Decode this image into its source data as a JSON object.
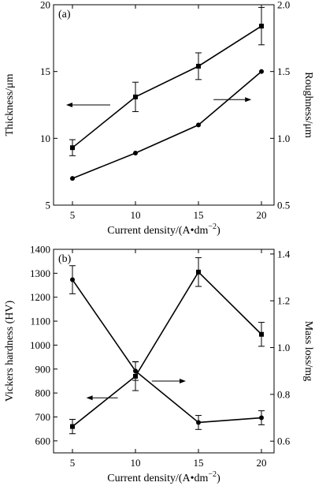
{
  "chart_data": [
    {
      "type": "line",
      "panel_label": "(a)",
      "xlabel": "Current density/(A•dm",
      "xlabel_sup": "−2",
      "xlabel_end": ")",
      "x": [
        5,
        10,
        15,
        20
      ],
      "x_ticks": [
        "5",
        "10",
        "15",
        "20"
      ],
      "xlim": [
        3.5,
        21
      ],
      "ylabel": "Thickness/μm",
      "ylim": [
        5,
        20
      ],
      "y_ticks": [
        "5",
        "10",
        "15",
        "20"
      ],
      "y_tick_values": [
        5,
        10,
        15,
        20
      ],
      "y2label": "Roughness/μm",
      "y2lim": [
        0.5,
        2.0
      ],
      "y2_ticks": [
        "0.5",
        "1.0",
        "1.5",
        "2.0"
      ],
      "y2_tick_values": [
        0.5,
        1.0,
        1.5,
        2.0
      ],
      "series": [
        {
          "axis": "left",
          "marker": "square",
          "values": [
            9.3,
            13.1,
            15.4,
            18.4
          ],
          "err": [
            0.6,
            1.1,
            1.0,
            1.4
          ]
        },
        {
          "axis": "right",
          "marker": "circle",
          "values": [
            0.7,
            0.89,
            1.1,
            1.5
          ],
          "err": [
            0,
            0,
            0,
            0
          ]
        }
      ],
      "arrows": [
        {
          "direction": "left",
          "at_x": 8.0,
          "at_y": 12.5,
          "length": 3.5
        },
        {
          "direction": "right",
          "at_x": 16.2,
          "at_y": 12.9,
          "length": 3.0
        }
      ]
    },
    {
      "type": "line",
      "panel_label": "(b)",
      "xlabel": "Current density/(A•dm",
      "xlabel_sup": "−2",
      "xlabel_end": ")",
      "x": [
        5,
        10,
        15,
        20
      ],
      "x_ticks": [
        "5",
        "10",
        "15",
        "20"
      ],
      "xlim": [
        3.5,
        21
      ],
      "ylabel": "Vickers hardness (HV)",
      "ylim": [
        550,
        1400
      ],
      "y_ticks": [
        "600",
        "700",
        "800",
        "900",
        "1000",
        "1100",
        "1200",
        "1300",
        "1400"
      ],
      "y_tick_values": [
        600,
        700,
        800,
        900,
        1000,
        1100,
        1200,
        1300,
        1400
      ],
      "y2label": "Mass loss/mg",
      "y2lim": [
        0.55,
        1.42
      ],
      "y2_ticks": [
        "0.6",
        "0.8",
        "1.0",
        "1.2",
        "1.4"
      ],
      "y2_tick_values": [
        0.6,
        0.8,
        1.0,
        1.2,
        1.4
      ],
      "series": [
        {
          "axis": "left",
          "marker": "square",
          "values": [
            660,
            870,
            1305,
            1045
          ],
          "err": [
            30,
            60,
            60,
            50
          ]
        },
        {
          "axis": "right",
          "marker": "circle",
          "values": [
            1.29,
            0.9,
            0.68,
            0.7
          ],
          "err": [
            0.06,
            0.04,
            0.03,
            0.03
          ]
        }
      ],
      "arrows": [
        {
          "direction": "left",
          "at_x": 8.6,
          "at_y": 780,
          "length": 2.5
        },
        {
          "direction": "right",
          "at_x": 11.3,
          "at_y": 850,
          "length": 2.7
        }
      ]
    }
  ]
}
